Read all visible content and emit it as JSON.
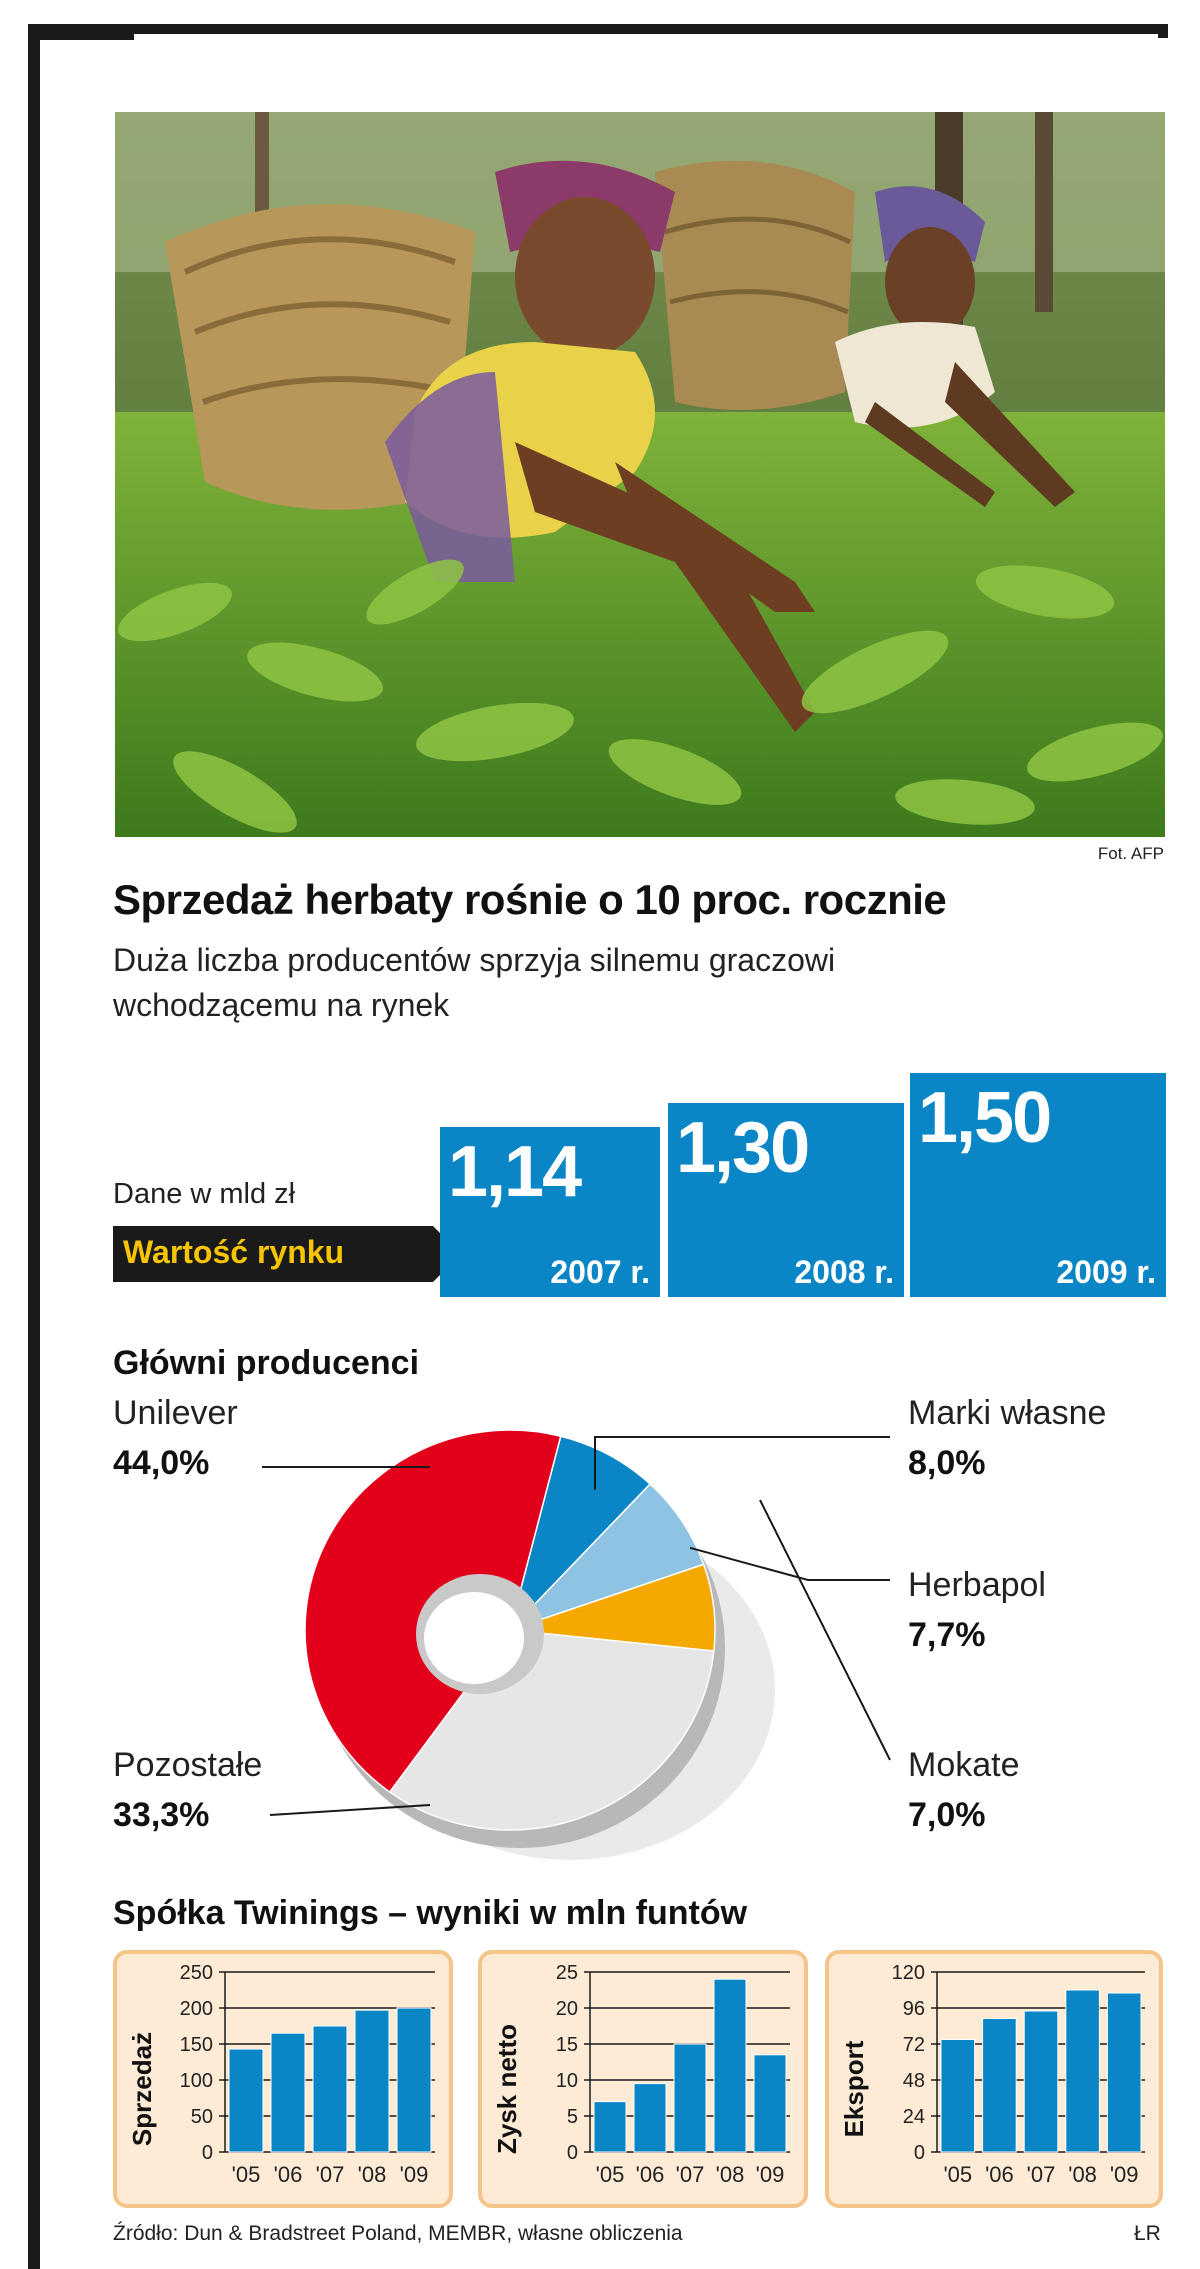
{
  "photo": {
    "credit": "Fot. AFP"
  },
  "headline": {
    "title": "Sprzedaż herbaty rośnie o 10 proc. rocznie",
    "subtitle_line1": "Duża liczba producentów sprzyja silnemu graczowi",
    "subtitle_line2": "wchodzącemu na rynek"
  },
  "colors": {
    "blue": "#0a86c6",
    "red": "#e2001a",
    "light_blue": "#8fc3e3",
    "orange": "#f5a800",
    "grey": "#e6e6e6",
    "chart_bg": "#fdebd6",
    "chart_border": "#f5c48a"
  },
  "chart_data": [
    {
      "type": "bar",
      "title": "Wartość rynku",
      "unit_label": "Dane w mld zł",
      "categories": [
        "2007 r.",
        "2008 r.",
        "2009 r."
      ],
      "values": [
        1.14,
        1.3,
        1.5
      ],
      "value_labels": [
        "1,14",
        "1,30",
        "1,50"
      ]
    },
    {
      "type": "pie",
      "title": "Główni producenci",
      "slices": [
        {
          "label": "Unilever",
          "value": 44.0,
          "display": "44,0%",
          "color": "#e2001a"
        },
        {
          "label": "Marki własne",
          "value": 8.0,
          "display": "8,0%",
          "color": "#0a86c6"
        },
        {
          "label": "Herbapol",
          "value": 7.7,
          "display": "7,7%",
          "color": "#8fc3e3"
        },
        {
          "label": "Mokate",
          "value": 7.0,
          "display": "7,0%",
          "color": "#f5a800"
        },
        {
          "label": "Pozostałe",
          "value": 33.3,
          "display": "33,3%",
          "color": "#e6e6e6"
        }
      ]
    },
    {
      "type": "bar",
      "group_title": "Spółka Twinings – wyniki w mln funtów",
      "ylabel": "Sprzedaż",
      "categories": [
        "'05",
        "'06",
        "'07",
        "'08",
        "'09"
      ],
      "values": [
        143,
        165,
        175,
        197,
        200
      ],
      "ylim": [
        0,
        250
      ],
      "yticks": [
        0,
        50,
        100,
        150,
        200,
        250
      ]
    },
    {
      "type": "bar",
      "ylabel": "Zysk netto",
      "categories": [
        "'05",
        "'06",
        "'07",
        "'08",
        "'09"
      ],
      "values": [
        7,
        9.5,
        15,
        24,
        13.5
      ],
      "ylim": [
        0,
        25
      ],
      "yticks": [
        0,
        5,
        10,
        15,
        20,
        25
      ]
    },
    {
      "type": "bar",
      "ylabel": "Eksport",
      "categories": [
        "'05",
        "'06",
        "'07",
        "'08",
        "'09"
      ],
      "values": [
        75,
        89,
        94,
        108,
        106
      ],
      "ylim": [
        0,
        120
      ],
      "yticks": [
        0,
        24,
        48,
        72,
        96,
        120
      ]
    }
  ],
  "footer": {
    "source": "Źródło: Dun & Bradstreet Poland, MEMBR, własne obliczenia",
    "author": "ŁR"
  }
}
